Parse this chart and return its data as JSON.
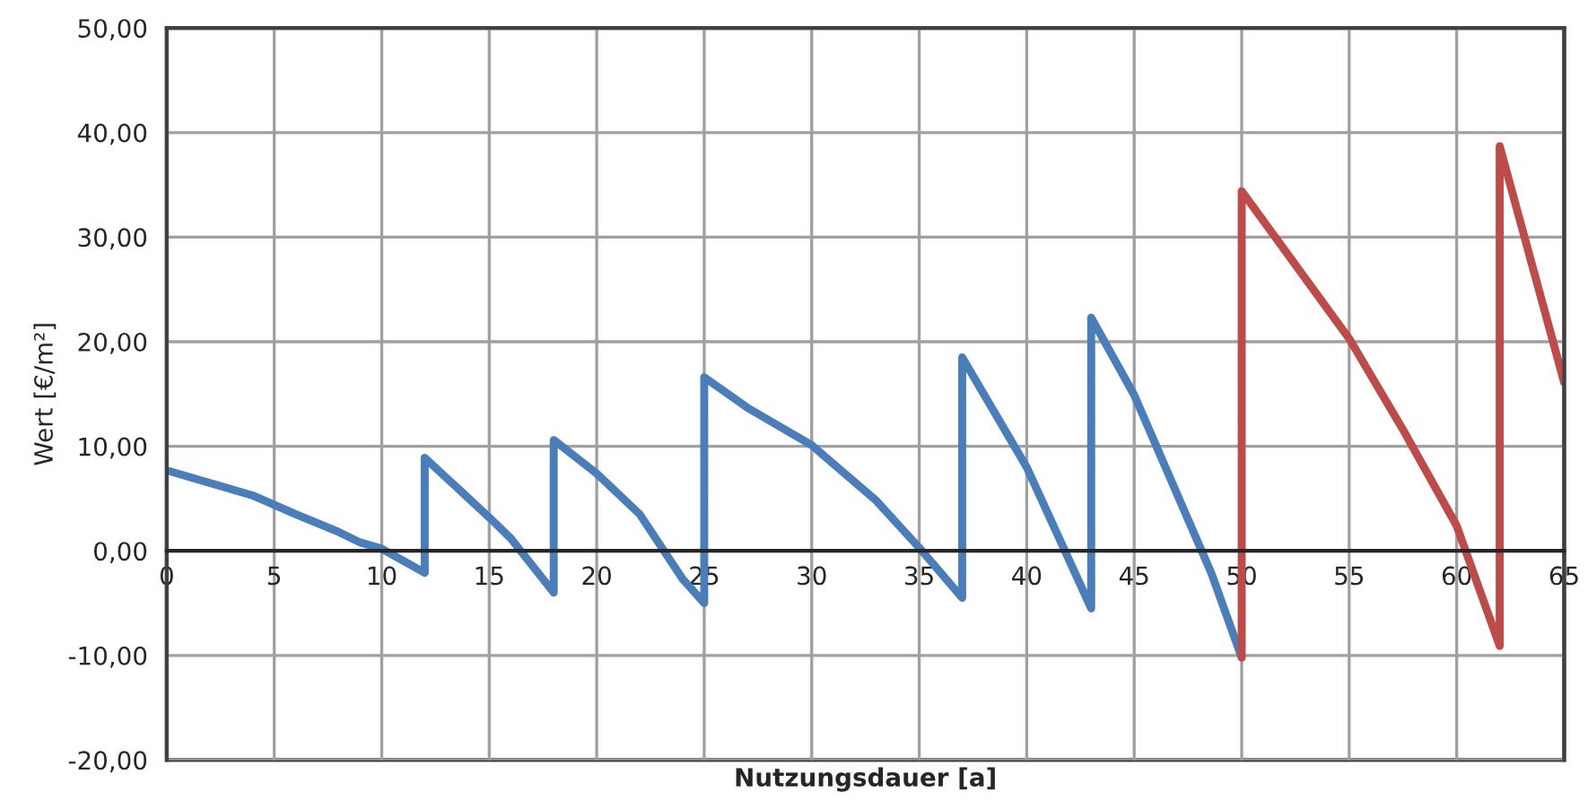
{
  "chart_data": {
    "type": "line",
    "xlabel": "Nutzungsdauer [a]",
    "ylabel": "Wert [€/m²]",
    "xlim": [
      0,
      65
    ],
    "xticks": [
      0,
      5,
      10,
      15,
      20,
      25,
      30,
      35,
      40,
      45,
      50,
      55,
      60,
      65
    ],
    "ylim": [
      -20,
      50
    ],
    "yticks": [
      {
        "value": -20,
        "label": "-20,00"
      },
      {
        "value": -10,
        "label": "-10,00"
      },
      {
        "value": 0,
        "label": "0,00"
      },
      {
        "value": 10,
        "label": "10,00"
      },
      {
        "value": 20,
        "label": "20,00"
      },
      {
        "value": 30,
        "label": "30,00"
      },
      {
        "value": 40,
        "label": "40,00"
      },
      {
        "value": 50,
        "label": "50,00"
      }
    ],
    "grid": true,
    "marker": "none",
    "line_style": "solid",
    "series": [
      {
        "color": "#4a7ebb",
        "x": [
          0,
          2,
          4,
          6,
          8,
          9,
          10,
          12,
          12,
          15,
          16,
          18,
          18,
          20,
          22,
          24,
          25,
          25,
          27,
          30,
          33,
          35,
          37,
          37,
          40,
          43,
          43,
          45,
          48.6,
          50
        ],
        "values": [
          7.7,
          6.5,
          5.3,
          3.5,
          1.8,
          0.8,
          0.2,
          -2.1,
          8.9,
          3.2,
          1.2,
          -4.0,
          10.6,
          7.4,
          3.5,
          -2.7,
          -5.0,
          16.6,
          13.7,
          10.1,
          4.8,
          0.3,
          -4.5,
          18.5,
          8.0,
          -5.5,
          22.3,
          14.9,
          -2.2,
          -10.2
        ]
      },
      {
        "color": "#be4b48",
        "x": [
          50,
          50,
          55,
          57.5,
          60,
          62,
          62,
          65
        ],
        "values": [
          -10.2,
          34.4,
          20.3,
          11.6,
          2.4,
          -9.1,
          38.7,
          16.1
        ]
      }
    ]
  }
}
